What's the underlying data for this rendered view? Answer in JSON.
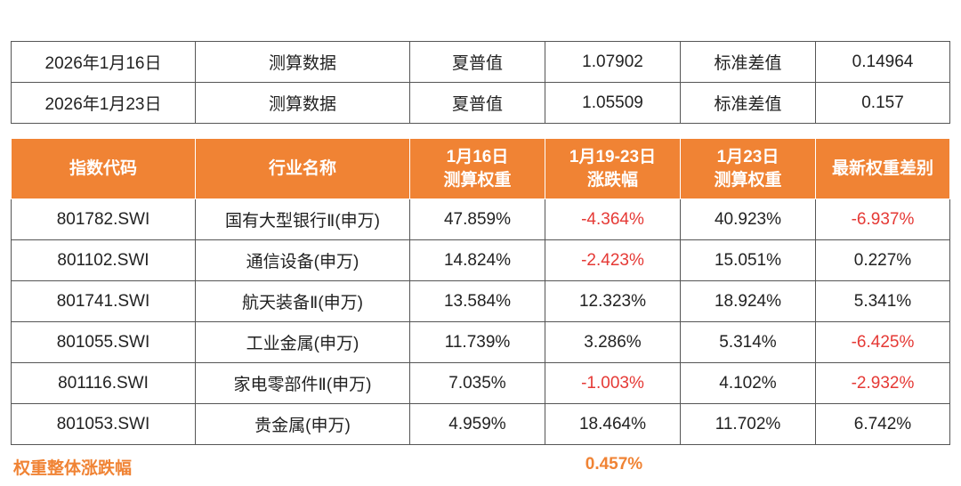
{
  "summary": [
    {
      "date": "2026年1月16日",
      "label": "测算数据",
      "metric1": "夏普值",
      "value1": "1.07902",
      "metric2": "标准差值",
      "value2": "0.14964"
    },
    {
      "date": "2026年1月23日",
      "label": "测算数据",
      "metric1": "夏普值",
      "value1": "1.05509",
      "metric2": "标准差值",
      "value2": "0.157"
    }
  ],
  "headers": {
    "code": "指数代码",
    "name": "行业名称",
    "w16_l1": "1月16日",
    "w16_l2": "测算权重",
    "chg_l1": "1月19-23日",
    "chg_l2": "涨跌幅",
    "w23_l1": "1月23日",
    "w23_l2": "测算权重",
    "diff": "最新权重差别"
  },
  "rows": [
    {
      "code": "801782.SWI",
      "name": "国有大型银行Ⅱ(申万)",
      "w16": "47.859%",
      "chg": "-4.364%",
      "w23": "40.923%",
      "diff": "-6.937%"
    },
    {
      "code": "801102.SWI",
      "name": "通信设备(申万)",
      "w16": "14.824%",
      "chg": "-2.423%",
      "w23": "15.051%",
      "diff": "0.227%"
    },
    {
      "code": "801741.SWI",
      "name": "航天装备Ⅱ(申万)",
      "w16": "13.584%",
      "chg": "12.323%",
      "w23": "18.924%",
      "diff": "5.341%"
    },
    {
      "code": "801055.SWI",
      "name": "工业金属(申万)",
      "w16": "11.739%",
      "chg": "3.286%",
      "w23": "5.314%",
      "diff": "-6.425%"
    },
    {
      "code": "801116.SWI",
      "name": "家电零部件Ⅱ(申万)",
      "w16": "7.035%",
      "chg": "-1.003%",
      "w23": "4.102%",
      "diff": "-2.932%"
    },
    {
      "code": "801053.SWI",
      "name": "贵金属(申万)",
      "w16": "4.959%",
      "chg": "18.464%",
      "w23": "11.702%",
      "diff": "6.742%"
    }
  ],
  "footer": {
    "label": "权重整体涨跌幅",
    "value": "0.457%"
  },
  "colors": {
    "header_bg": "#f08334",
    "negative": "#e53935",
    "footer": "#f08334"
  }
}
